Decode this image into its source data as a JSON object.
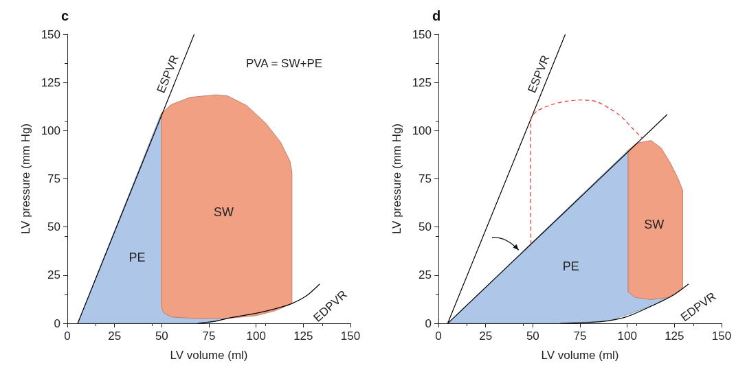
{
  "chart_data": [
    {
      "type": "line",
      "title": "c",
      "xlabel": "LV volume (ml)",
      "ylabel": "LV pressure (mm Hg)",
      "xlim": [
        0,
        150
      ],
      "ylim": [
        0,
        150
      ],
      "xticks": [
        0,
        25,
        50,
        75,
        100,
        125,
        150
      ],
      "yticks": [
        0,
        25,
        50,
        75,
        100,
        125,
        150
      ],
      "annotations": [
        "PVA = SW+PE"
      ],
      "series": [
        {
          "name": "PE",
          "type": "area",
          "color": "#aec6e8",
          "x": [
            5.5,
            49.8,
            49.8,
            85,
            78,
            69
          ],
          "values": [
            0,
            109,
            8.5,
            2.6,
            1,
            0
          ]
        },
        {
          "name": "SW",
          "type": "area",
          "color": "#f2a083",
          "x": [
            49.8,
            55,
            65,
            79,
            85,
            95,
            105,
            113,
            118,
            119,
            119,
            110,
            100,
            85,
            70,
            55,
            51,
            49.8
          ],
          "values": [
            109,
            113.5,
            117.3,
            118.6,
            118,
            113,
            104,
            94,
            84,
            78.5,
            10.3,
            6.5,
            4,
            2.6,
            2.4,
            3.3,
            5.5,
            8.5
          ]
        },
        {
          "name": "ESPVR",
          "color": "#000000",
          "x": [
            5.5,
            67.2
          ],
          "values": [
            0,
            150
          ]
        },
        {
          "name": "EDPVR",
          "color": "#000000",
          "x": [
            69,
            78,
            86,
            100,
            110,
            119,
            127,
            133.7
          ],
          "values": [
            0,
            1,
            2.8,
            5.2,
            7.5,
            10.3,
            14.5,
            20.4
          ]
        }
      ]
    },
    {
      "type": "line",
      "title": "d",
      "xlabel": "LV volume (ml)",
      "ylabel": "LV pressure (mm Hg)",
      "xlim": [
        0,
        150
      ],
      "ylim": [
        0,
        150
      ],
      "xticks": [
        0,
        25,
        50,
        75,
        100,
        125,
        150
      ],
      "yticks": [
        0,
        25,
        50,
        75,
        100,
        125,
        150
      ],
      "series": [
        {
          "name": "PE",
          "type": "area",
          "color": "#aec6e8",
          "x": [
            5,
            100.5,
            100.5,
            129.4,
            114.5,
            100,
            90,
            64.6
          ],
          "values": [
            0,
            89.8,
            16.3,
            18,
            9.7,
            4.5,
            1.3,
            0
          ]
        },
        {
          "name": "SW",
          "type": "area",
          "color": "#f2a083",
          "x": [
            100.5,
            105,
            112.7,
            118,
            123,
            127,
            129.4,
            129.4,
            122,
            112.7,
            104,
            100.5
          ],
          "values": [
            89.8,
            93.5,
            94.9,
            91,
            83,
            75,
            69,
            18,
            13.5,
            12.3,
            13.5,
            16.3
          ]
        },
        {
          "name": "ESPVR",
          "color": "#000000",
          "x": [
            4.9,
            67.2
          ],
          "values": [
            0,
            150
          ]
        },
        {
          "color": "#000000",
          "x": [
            5,
            121.2
          ],
          "values": [
            0,
            108.4
          ]
        },
        {
          "color": "#e8332a",
          "line_style": "dashed",
          "x": [
            49,
            49,
            52,
            60,
            68,
            75.5,
            84,
            96,
            103,
            107.8
          ],
          "values": [
            41,
            105.8,
            110,
            113.5,
            115.3,
            115.9,
            115,
            108,
            101,
            96.3
          ]
        },
        {
          "name": "EDPVR",
          "color": "#000000",
          "x": [
            64.6,
            80,
            90,
            100,
            114.5,
            125,
            132.5
          ],
          "values": [
            0,
            0.5,
            1.3,
            3.5,
            9.7,
            15,
            20.4
          ]
        }
      ]
    }
  ]
}
